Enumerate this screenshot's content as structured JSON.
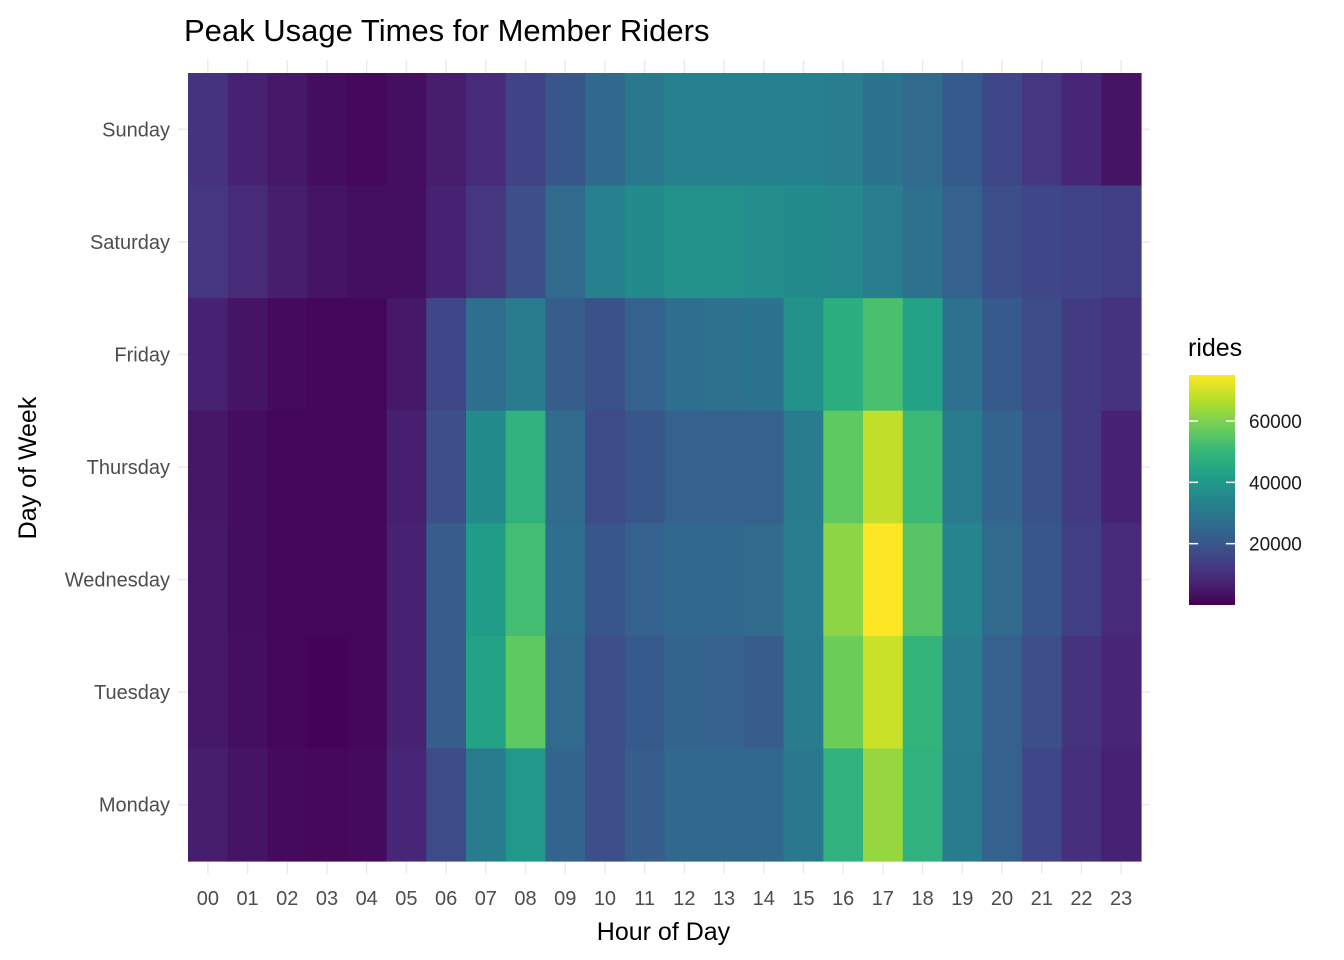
{
  "chart_data": {
    "type": "heatmap",
    "title": "Peak Usage Times for Member Riders",
    "xlabel": "Hour of Day",
    "ylabel": "Day of Week",
    "x": [
      "00",
      "01",
      "02",
      "03",
      "04",
      "05",
      "06",
      "07",
      "08",
      "09",
      "10",
      "11",
      "12",
      "13",
      "14",
      "15",
      "16",
      "17",
      "18",
      "19",
      "20",
      "21",
      "22",
      "23"
    ],
    "y": [
      "Sunday",
      "Saturday",
      "Friday",
      "Thursday",
      "Wednesday",
      "Tuesday",
      "Monday"
    ],
    "values": [
      [
        11000,
        7000,
        5000,
        2500,
        1500,
        3000,
        6000,
        9000,
        15000,
        20000,
        25000,
        30000,
        33000,
        33000,
        33000,
        33000,
        32000,
        29000,
        26000,
        21000,
        16000,
        12000,
        8000,
        4000
      ],
      [
        12000,
        9000,
        6000,
        4000,
        3000,
        3000,
        7000,
        12000,
        18000,
        26000,
        33000,
        36000,
        38000,
        38000,
        37000,
        36000,
        35000,
        32000,
        28000,
        23000,
        18000,
        16000,
        15000,
        14000
      ],
      [
        7000,
        4000,
        2000,
        1000,
        1000,
        5000,
        16000,
        27000,
        31000,
        22000,
        19000,
        23000,
        27000,
        28000,
        29000,
        38000,
        47000,
        53000,
        43000,
        28000,
        21000,
        17000,
        13000,
        11000
      ],
      [
        4500,
        2500,
        1000,
        1000,
        1000,
        6500,
        18000,
        36000,
        48000,
        26000,
        17000,
        20000,
        23000,
        23000,
        23000,
        31000,
        56000,
        68000,
        51000,
        31000,
        24000,
        19000,
        13000,
        7000
      ],
      [
        5000,
        2500,
        1000,
        1000,
        1000,
        7000,
        22000,
        41000,
        52000,
        27000,
        20000,
        23000,
        25000,
        25000,
        26000,
        32000,
        62000,
        75000,
        55000,
        34000,
        26000,
        20000,
        14000,
        9000
      ],
      [
        5000,
        3000,
        1000,
        500,
        1000,
        7000,
        22000,
        43000,
        56000,
        26000,
        18000,
        21000,
        24000,
        23000,
        22000,
        31000,
        58000,
        69000,
        49000,
        32000,
        23000,
        18000,
        11000,
        8000
      ],
      [
        6000,
        4000,
        2000,
        1500,
        2000,
        8000,
        17000,
        31000,
        40000,
        24000,
        18000,
        22000,
        25000,
        25000,
        25000,
        30000,
        48000,
        63000,
        48000,
        31000,
        23000,
        16000,
        10000,
        7000
      ]
    ],
    "legend": {
      "title": "rides",
      "range": [
        0,
        75000
      ],
      "ticks": [
        "20000",
        "40000",
        "60000"
      ],
      "placement": "right",
      "palette": [
        "#440154",
        "#482878",
        "#3e4a89",
        "#31688e",
        "#26828e",
        "#1f9e89",
        "#35b779",
        "#6ece58",
        "#b5de2b",
        "#fde725"
      ]
    },
    "grid": true
  }
}
